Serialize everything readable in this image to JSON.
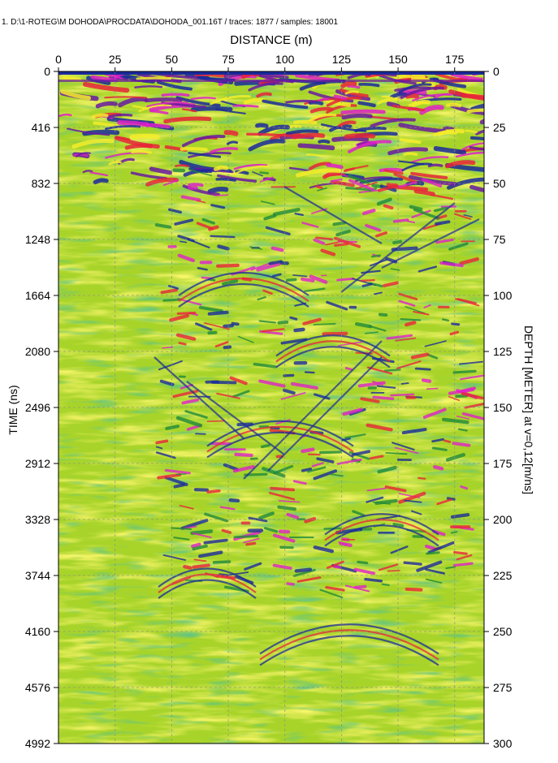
{
  "header": {
    "text": "1. D:\\1-ROTEG\\M DOHODA\\PROCDATA\\DOHODA_001.16T / traces: 1877 / samples: 18001"
  },
  "chart_data": {
    "type": "heatmap",
    "title": "",
    "xlabel": "DISTANCE (m)",
    "ylabel": "TIME (ns)",
    "y2label": "DEPTH [METER] at v=0,12[m/ns]",
    "x_ticks": [
      0,
      25,
      50,
      75,
      100,
      125,
      150,
      175
    ],
    "x_range": [
      0,
      188
    ],
    "y_ticks": [
      0,
      416,
      832,
      1248,
      1664,
      2080,
      2496,
      2912,
      3328,
      3744,
      4160,
      4576,
      4992
    ],
    "y_range": [
      0,
      4992
    ],
    "y2_ticks": [
      0,
      25,
      50,
      75,
      100,
      125,
      150,
      175,
      200,
      225,
      250,
      275,
      300
    ],
    "y2_range": [
      0,
      300
    ],
    "grid": true,
    "colors": {
      "background": "#a8d42a",
      "positive_mid": "#f4ec2a",
      "positive_high": "#e8243a",
      "positive_max": "#e020c8",
      "negative_mid": "#1f8a3a",
      "negative_high": "#1a2a9a",
      "negative_max": "#6a1aa0"
    }
  }
}
